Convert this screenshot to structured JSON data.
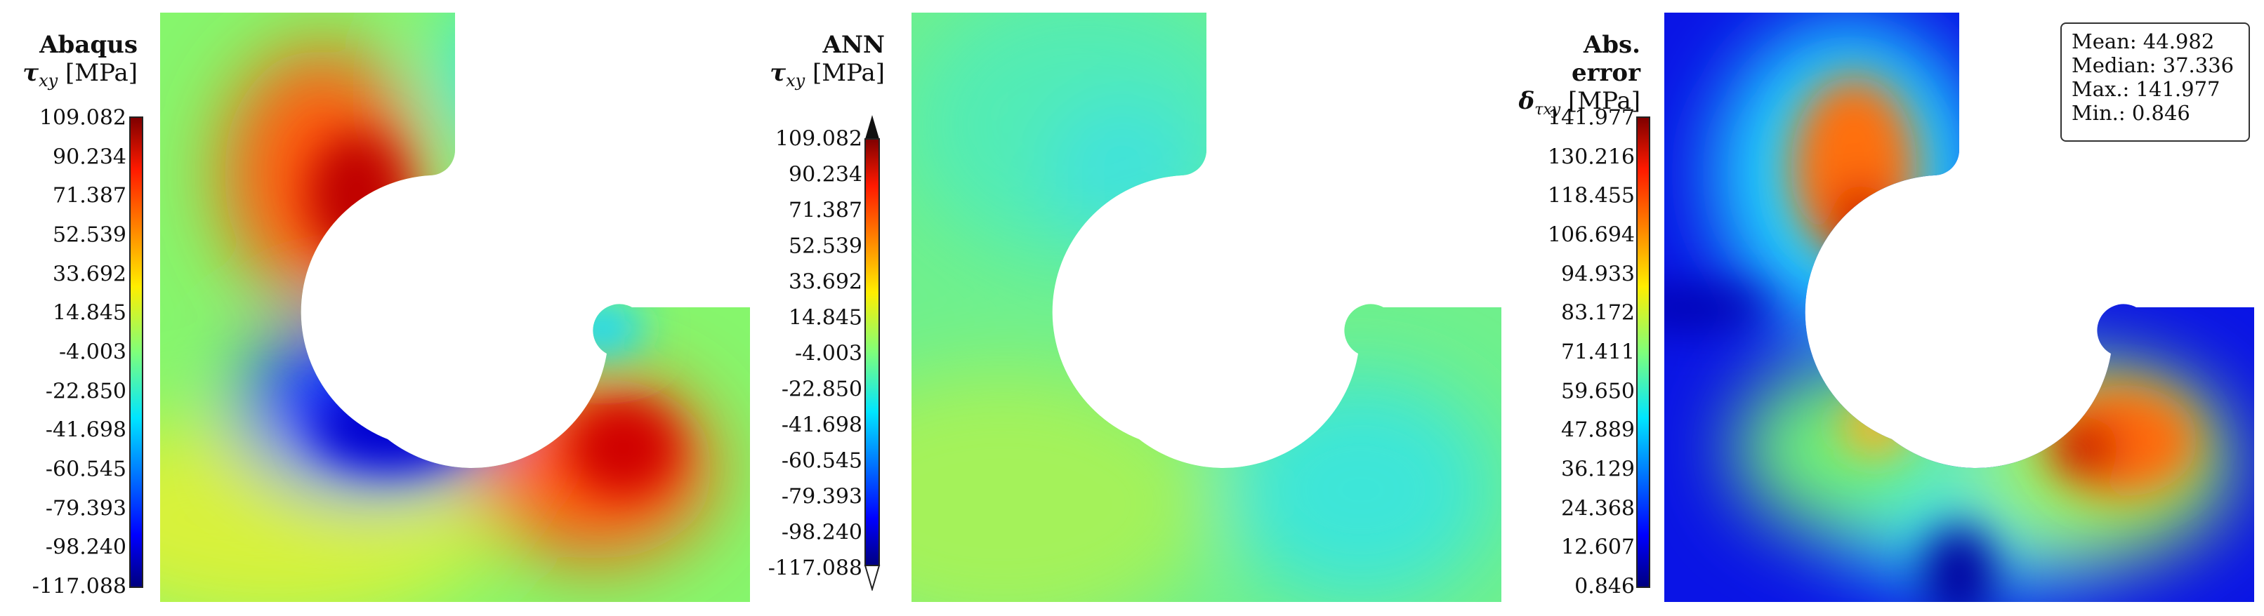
{
  "panels": [
    {
      "name": "Abaqus",
      "symbol": "τ",
      "subscript": "xy",
      "unit": "[MPa]",
      "ticks": [
        "109.082",
        "90.234",
        "71.387",
        "52.539",
        "33.692",
        "14.845",
        "-4.003",
        "-22.850",
        "-41.698",
        "-60.545",
        "-79.393",
        "-98.240",
        "-117.088"
      ]
    },
    {
      "name": "ANN",
      "symbol": "τ",
      "subscript": "xy",
      "unit": "[MPa]",
      "ticks": [
        "109.082",
        "90.234",
        "71.387",
        "52.539",
        "33.692",
        "14.845",
        "-4.003",
        "-22.850",
        "-41.698",
        "-60.545",
        "-79.393",
        "-98.240",
        "-117.088"
      ]
    },
    {
      "name": "Abs. error",
      "symbol": "δ",
      "subscript": "τxy",
      "unit": "[MPa]",
      "ticks": [
        "141.977",
        "130.216",
        "118.455",
        "106.694",
        "94.933",
        "83.172",
        "71.411",
        "59.650",
        "47.889",
        "36.129",
        "24.368",
        "12.607",
        "0.846"
      ]
    }
  ],
  "stats": {
    "mean": "Mean: 44.982",
    "median": "Median: 37.336",
    "max": "Max.: 141.977",
    "min": "Min.: 0.846"
  }
}
